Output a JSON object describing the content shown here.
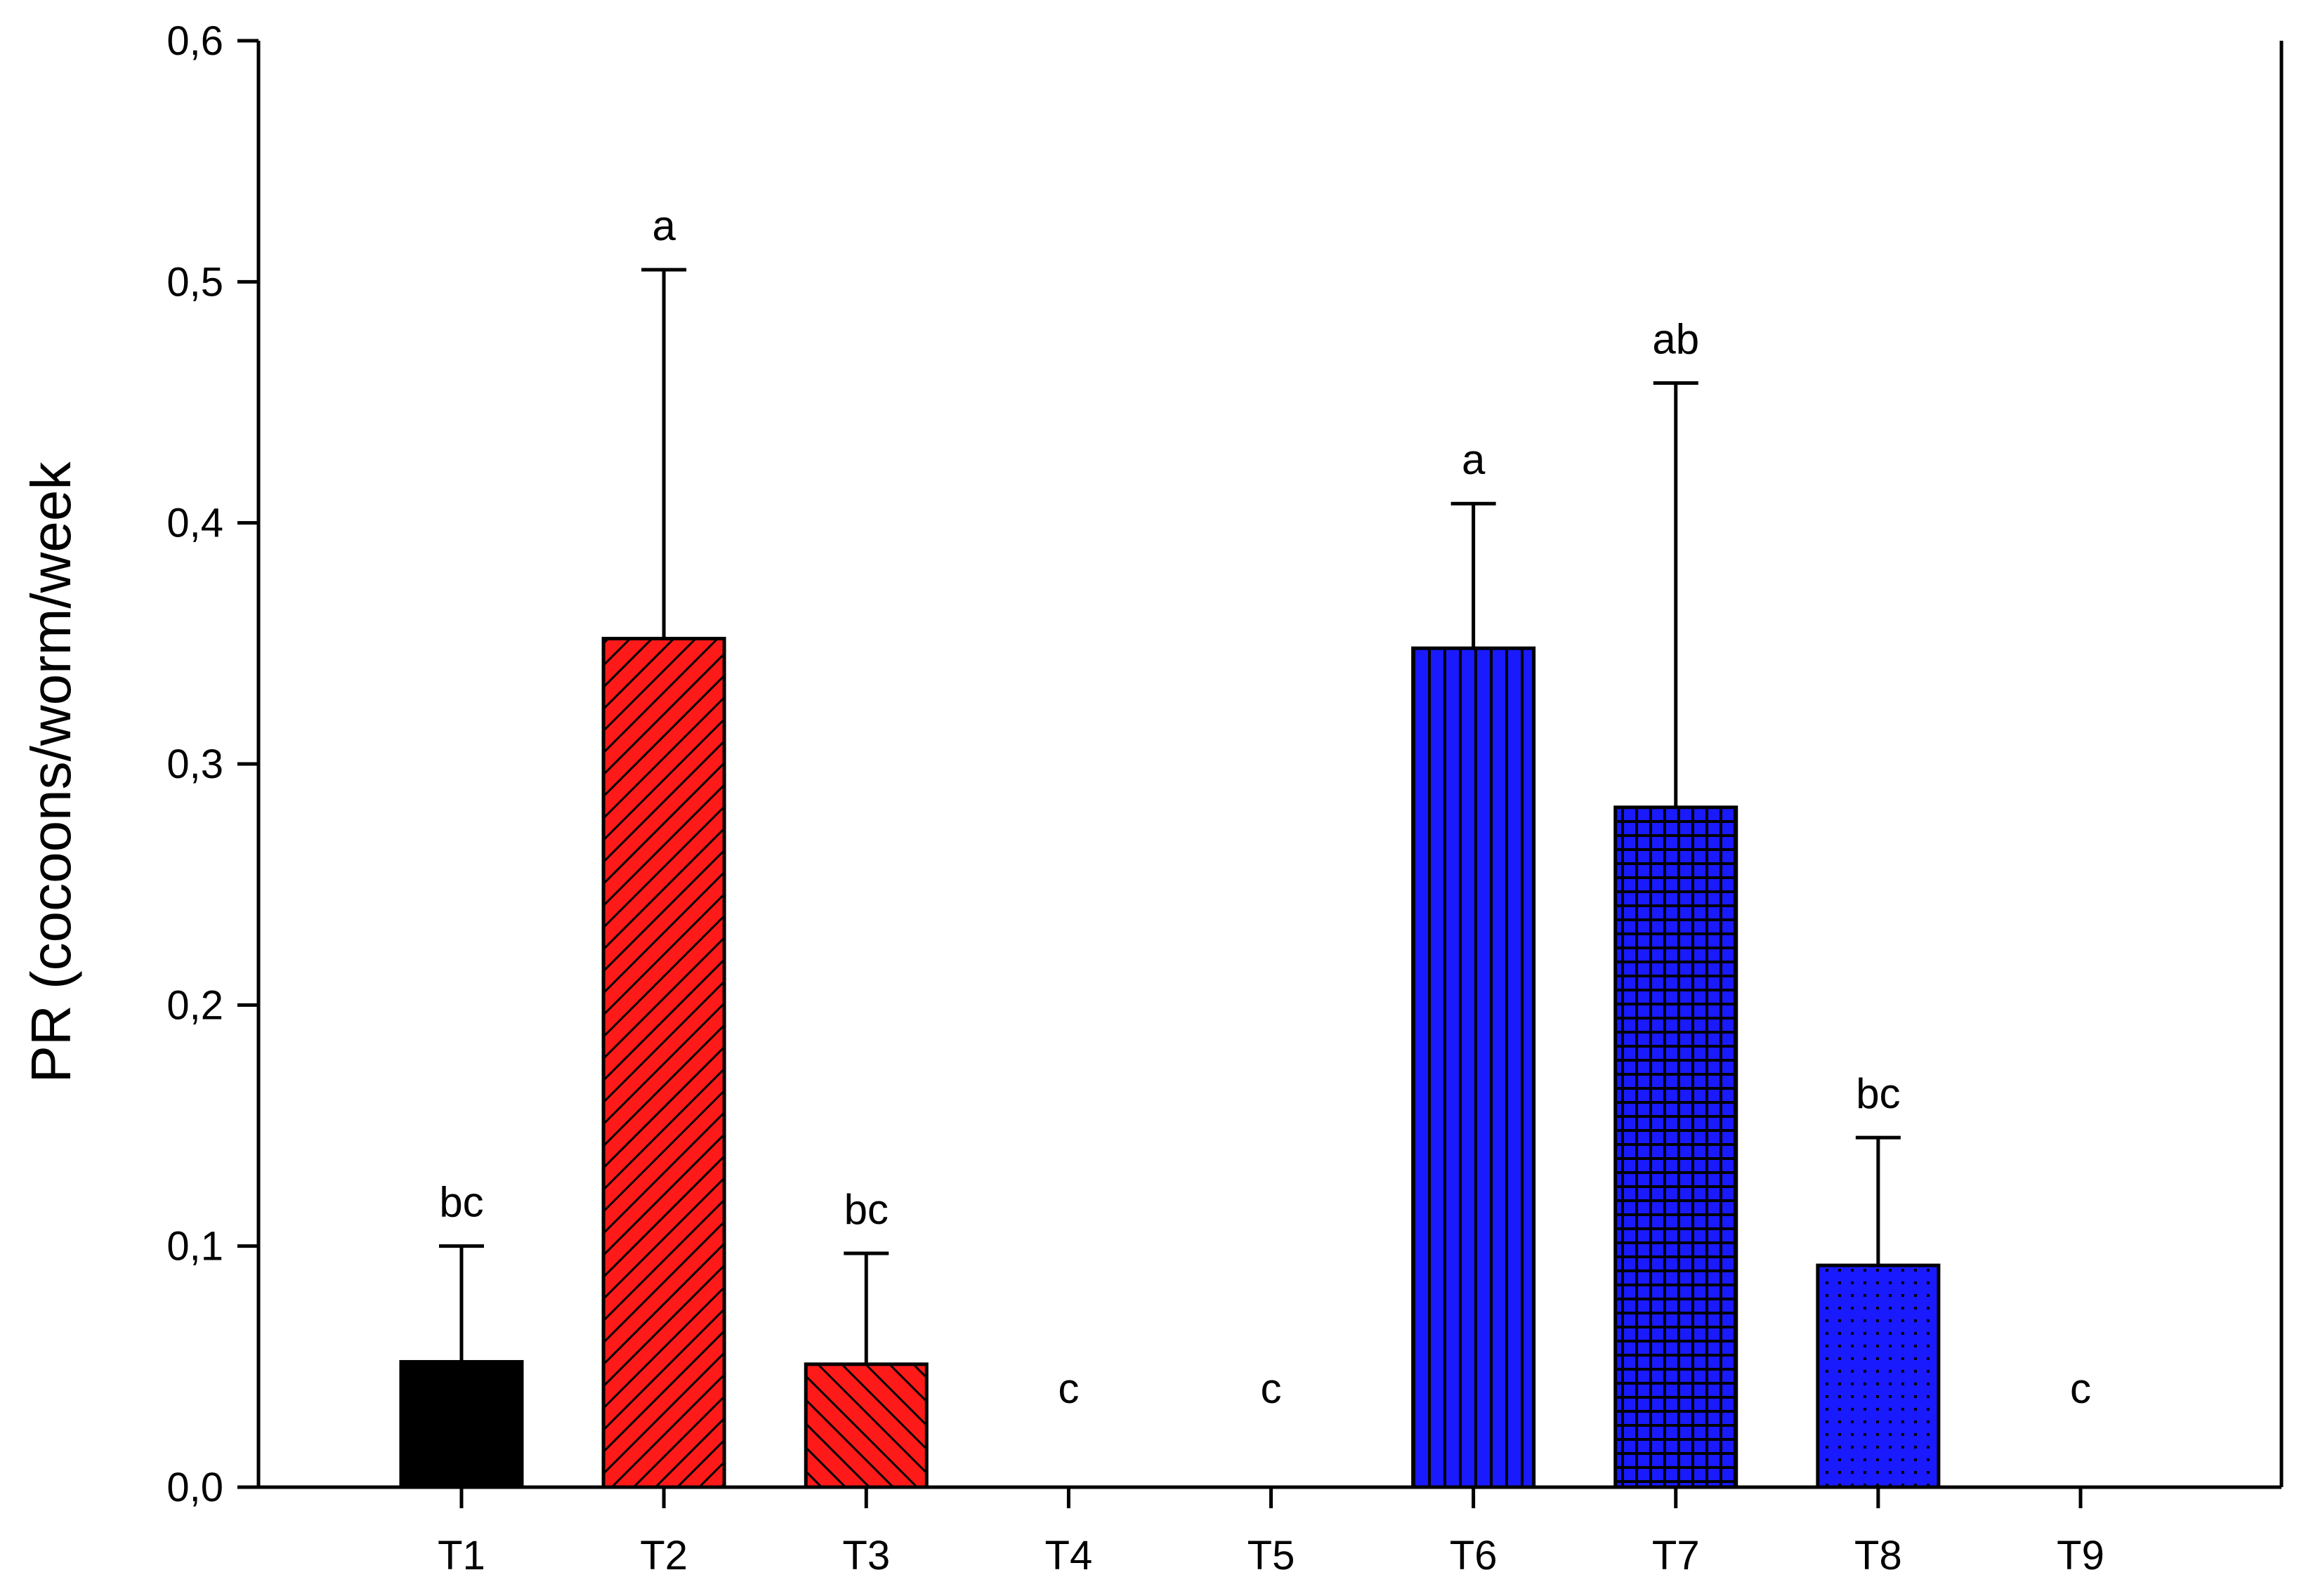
{
  "chart_data": {
    "type": "bar",
    "title": "",
    "xlabel": "",
    "ylabel": "PR (cocoons/worm/week",
    "ylim": [
      0,
      0.6
    ],
    "grid": false,
    "yticks": [
      {
        "value": 0.0,
        "label": "0,0"
      },
      {
        "value": 0.1,
        "label": "0,1"
      },
      {
        "value": 0.2,
        "label": "0,2"
      },
      {
        "value": 0.3,
        "label": "0,3"
      },
      {
        "value": 0.4,
        "label": "0,4"
      },
      {
        "value": 0.5,
        "label": "0,5"
      },
      {
        "value": 0.6,
        "label": "0,6"
      }
    ],
    "categories": [
      "T1",
      "T2",
      "T3",
      "T4",
      "T5",
      "T6",
      "T7",
      "T8",
      "T9"
    ],
    "values": [
      0.052,
      0.352,
      0.051,
      0,
      0,
      0.348,
      0.282,
      0.092,
      0
    ],
    "error_upper": [
      0.1,
      0.505,
      0.097,
      null,
      null,
      0.408,
      0.458,
      0.145,
      null
    ],
    "significance_letters": [
      "bc",
      "a",
      "bc",
      "c",
      "c",
      "a",
      "ab",
      "bc",
      "c"
    ],
    "styles": [
      {
        "fill": "#000000",
        "pattern": "solid"
      },
      {
        "fill": "#ff1a1a",
        "pattern": "diagonal-dense"
      },
      {
        "fill": "#ff1a1a",
        "pattern": "diagonal"
      },
      {
        "fill": "#ffffff",
        "pattern": "none"
      },
      {
        "fill": "#ffffff",
        "pattern": "none"
      },
      {
        "fill": "#1a1aff",
        "pattern": "vertical-lines"
      },
      {
        "fill": "#1a1aff",
        "pattern": "grid"
      },
      {
        "fill": "#1a1aff",
        "pattern": "dots"
      },
      {
        "fill": "#ffffff",
        "pattern": "none"
      }
    ]
  }
}
